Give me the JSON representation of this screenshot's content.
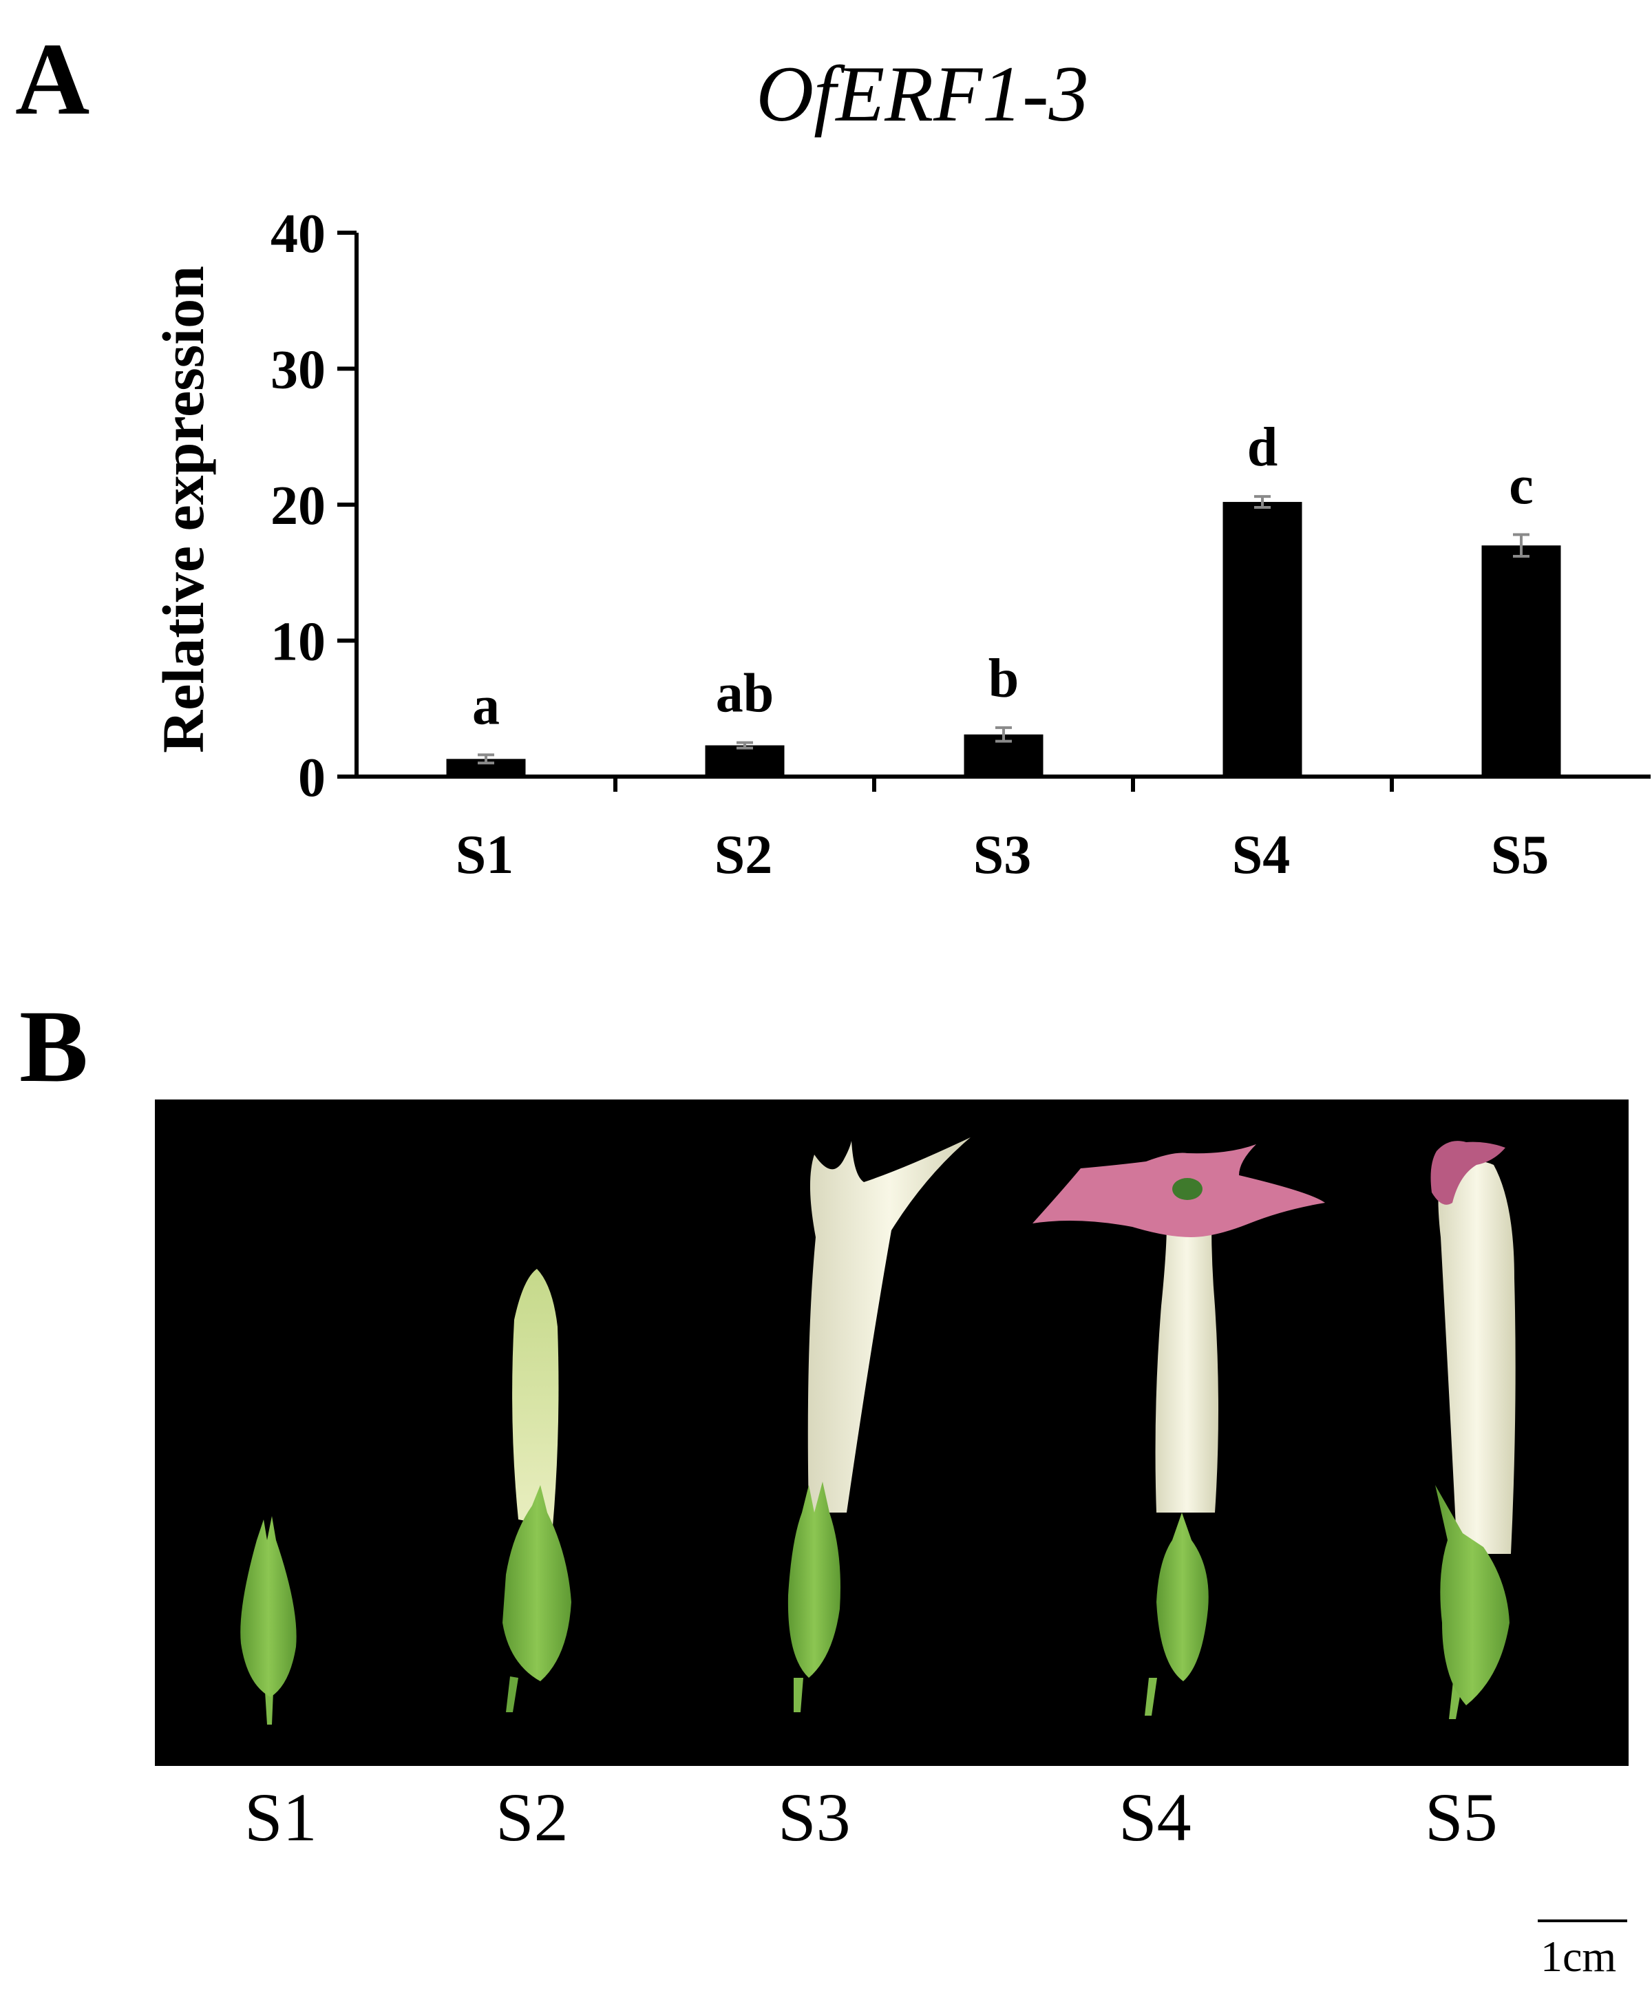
{
  "panels": {
    "a_label": "A",
    "b_label": "B"
  },
  "chart_data": {
    "type": "bar",
    "title": "OfERF1-3",
    "xlabel": "",
    "ylabel": "Relative expression",
    "categories": [
      "S1",
      "S2",
      "S3",
      "S4",
      "S5"
    ],
    "values": [
      1.3,
      2.3,
      3.1,
      20.2,
      17.0
    ],
    "errors": [
      0.3,
      0.2,
      0.5,
      0.4,
      0.8
    ],
    "significance": [
      "a",
      "ab",
      "b",
      "d",
      "c"
    ],
    "ylim": [
      0,
      40
    ],
    "yticks": [
      0,
      10,
      20,
      30,
      40
    ],
    "grid": false,
    "legend": "none",
    "bar_color": "#000000"
  },
  "photo": {
    "background": "#000000",
    "stage_labels": [
      "S1",
      "S2",
      "S3",
      "S4",
      "S5"
    ],
    "scale_label": "1cm",
    "colors": {
      "sepal_green": "#7fb94a",
      "corolla_white": "#f3f2dc",
      "petal_pink": "#d2779a"
    }
  }
}
